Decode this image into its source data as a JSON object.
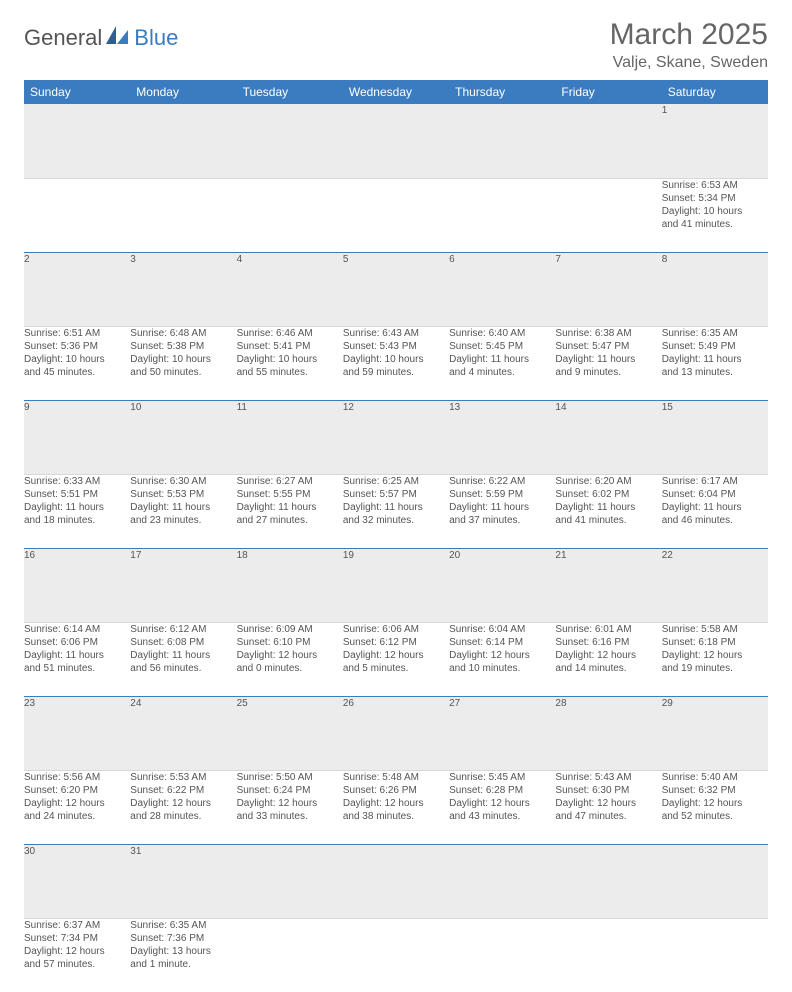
{
  "brand": {
    "part1": "General",
    "part2": "Blue"
  },
  "title": "March 2025",
  "location": "Valje, Skane, Sweden",
  "colors": {
    "header_bg": "#3b7bbf",
    "header_text": "#ffffff",
    "daynum_bg": "#ececec",
    "rule": "#3b7bbf",
    "text": "#555555"
  },
  "weekdays": [
    "Sunday",
    "Monday",
    "Tuesday",
    "Wednesday",
    "Thursday",
    "Friday",
    "Saturday"
  ],
  "weeks": [
    [
      null,
      null,
      null,
      null,
      null,
      null,
      {
        "n": "1",
        "sr": "Sunrise: 6:53 AM",
        "ss": "Sunset: 5:34 PM",
        "d1": "Daylight: 10 hours",
        "d2": "and 41 minutes."
      }
    ],
    [
      {
        "n": "2",
        "sr": "Sunrise: 6:51 AM",
        "ss": "Sunset: 5:36 PM",
        "d1": "Daylight: 10 hours",
        "d2": "and 45 minutes."
      },
      {
        "n": "3",
        "sr": "Sunrise: 6:48 AM",
        "ss": "Sunset: 5:38 PM",
        "d1": "Daylight: 10 hours",
        "d2": "and 50 minutes."
      },
      {
        "n": "4",
        "sr": "Sunrise: 6:46 AM",
        "ss": "Sunset: 5:41 PM",
        "d1": "Daylight: 10 hours",
        "d2": "and 55 minutes."
      },
      {
        "n": "5",
        "sr": "Sunrise: 6:43 AM",
        "ss": "Sunset: 5:43 PM",
        "d1": "Daylight: 10 hours",
        "d2": "and 59 minutes."
      },
      {
        "n": "6",
        "sr": "Sunrise: 6:40 AM",
        "ss": "Sunset: 5:45 PM",
        "d1": "Daylight: 11 hours",
        "d2": "and 4 minutes."
      },
      {
        "n": "7",
        "sr": "Sunrise: 6:38 AM",
        "ss": "Sunset: 5:47 PM",
        "d1": "Daylight: 11 hours",
        "d2": "and 9 minutes."
      },
      {
        "n": "8",
        "sr": "Sunrise: 6:35 AM",
        "ss": "Sunset: 5:49 PM",
        "d1": "Daylight: 11 hours",
        "d2": "and 13 minutes."
      }
    ],
    [
      {
        "n": "9",
        "sr": "Sunrise: 6:33 AM",
        "ss": "Sunset: 5:51 PM",
        "d1": "Daylight: 11 hours",
        "d2": "and 18 minutes."
      },
      {
        "n": "10",
        "sr": "Sunrise: 6:30 AM",
        "ss": "Sunset: 5:53 PM",
        "d1": "Daylight: 11 hours",
        "d2": "and 23 minutes."
      },
      {
        "n": "11",
        "sr": "Sunrise: 6:27 AM",
        "ss": "Sunset: 5:55 PM",
        "d1": "Daylight: 11 hours",
        "d2": "and 27 minutes."
      },
      {
        "n": "12",
        "sr": "Sunrise: 6:25 AM",
        "ss": "Sunset: 5:57 PM",
        "d1": "Daylight: 11 hours",
        "d2": "and 32 minutes."
      },
      {
        "n": "13",
        "sr": "Sunrise: 6:22 AM",
        "ss": "Sunset: 5:59 PM",
        "d1": "Daylight: 11 hours",
        "d2": "and 37 minutes."
      },
      {
        "n": "14",
        "sr": "Sunrise: 6:20 AM",
        "ss": "Sunset: 6:02 PM",
        "d1": "Daylight: 11 hours",
        "d2": "and 41 minutes."
      },
      {
        "n": "15",
        "sr": "Sunrise: 6:17 AM",
        "ss": "Sunset: 6:04 PM",
        "d1": "Daylight: 11 hours",
        "d2": "and 46 minutes."
      }
    ],
    [
      {
        "n": "16",
        "sr": "Sunrise: 6:14 AM",
        "ss": "Sunset: 6:06 PM",
        "d1": "Daylight: 11 hours",
        "d2": "and 51 minutes."
      },
      {
        "n": "17",
        "sr": "Sunrise: 6:12 AM",
        "ss": "Sunset: 6:08 PM",
        "d1": "Daylight: 11 hours",
        "d2": "and 56 minutes."
      },
      {
        "n": "18",
        "sr": "Sunrise: 6:09 AM",
        "ss": "Sunset: 6:10 PM",
        "d1": "Daylight: 12 hours",
        "d2": "and 0 minutes."
      },
      {
        "n": "19",
        "sr": "Sunrise: 6:06 AM",
        "ss": "Sunset: 6:12 PM",
        "d1": "Daylight: 12 hours",
        "d2": "and 5 minutes."
      },
      {
        "n": "20",
        "sr": "Sunrise: 6:04 AM",
        "ss": "Sunset: 6:14 PM",
        "d1": "Daylight: 12 hours",
        "d2": "and 10 minutes."
      },
      {
        "n": "21",
        "sr": "Sunrise: 6:01 AM",
        "ss": "Sunset: 6:16 PM",
        "d1": "Daylight: 12 hours",
        "d2": "and 14 minutes."
      },
      {
        "n": "22",
        "sr": "Sunrise: 5:58 AM",
        "ss": "Sunset: 6:18 PM",
        "d1": "Daylight: 12 hours",
        "d2": "and 19 minutes."
      }
    ],
    [
      {
        "n": "23",
        "sr": "Sunrise: 5:56 AM",
        "ss": "Sunset: 6:20 PM",
        "d1": "Daylight: 12 hours",
        "d2": "and 24 minutes."
      },
      {
        "n": "24",
        "sr": "Sunrise: 5:53 AM",
        "ss": "Sunset: 6:22 PM",
        "d1": "Daylight: 12 hours",
        "d2": "and 28 minutes."
      },
      {
        "n": "25",
        "sr": "Sunrise: 5:50 AM",
        "ss": "Sunset: 6:24 PM",
        "d1": "Daylight: 12 hours",
        "d2": "and 33 minutes."
      },
      {
        "n": "26",
        "sr": "Sunrise: 5:48 AM",
        "ss": "Sunset: 6:26 PM",
        "d1": "Daylight: 12 hours",
        "d2": "and 38 minutes."
      },
      {
        "n": "27",
        "sr": "Sunrise: 5:45 AM",
        "ss": "Sunset: 6:28 PM",
        "d1": "Daylight: 12 hours",
        "d2": "and 43 minutes."
      },
      {
        "n": "28",
        "sr": "Sunrise: 5:43 AM",
        "ss": "Sunset: 6:30 PM",
        "d1": "Daylight: 12 hours",
        "d2": "and 47 minutes."
      },
      {
        "n": "29",
        "sr": "Sunrise: 5:40 AM",
        "ss": "Sunset: 6:32 PM",
        "d1": "Daylight: 12 hours",
        "d2": "and 52 minutes."
      }
    ],
    [
      {
        "n": "30",
        "sr": "Sunrise: 6:37 AM",
        "ss": "Sunset: 7:34 PM",
        "d1": "Daylight: 12 hours",
        "d2": "and 57 minutes."
      },
      {
        "n": "31",
        "sr": "Sunrise: 6:35 AM",
        "ss": "Sunset: 7:36 PM",
        "d1": "Daylight: 13 hours",
        "d2": "and 1 minute."
      },
      null,
      null,
      null,
      null,
      null
    ]
  ]
}
